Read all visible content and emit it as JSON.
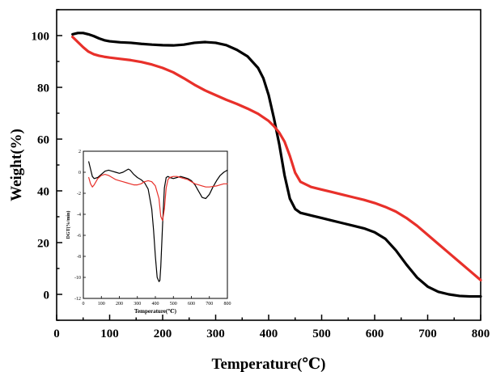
{
  "chart_data": [
    {
      "type": "line",
      "title": "",
      "xlabel": "Temperature(℃)",
      "ylabel": "Weight(%)",
      "xlim": [
        0,
        800
      ],
      "ylim": [
        -10,
        110
      ],
      "xticks": [
        0,
        100,
        200,
        300,
        400,
        500,
        600,
        700,
        800
      ],
      "xtick_labels": [
        "0",
        "100",
        "200",
        "300",
        "400",
        "500",
        "600",
        "700",
        "800"
      ],
      "yticks": [
        0,
        20,
        40,
        60,
        80,
        100
      ],
      "ytick_labels": [
        "0",
        "20",
        "40",
        "60",
        "80",
        "100"
      ],
      "grid": false,
      "series": [
        {
          "color": "#000000",
          "x": [
            30,
            40,
            50,
            60,
            70,
            80,
            90,
            100,
            120,
            140,
            160,
            180,
            200,
            220,
            240,
            260,
            280,
            300,
            320,
            340,
            360,
            380,
            390,
            400,
            410,
            420,
            430,
            440,
            450,
            460,
            480,
            500,
            520,
            540,
            560,
            580,
            600,
            620,
            640,
            660,
            680,
            700,
            720,
            740,
            760,
            780,
            800
          ],
          "y": [
            100.5,
            101,
            101,
            100.5,
            99.8,
            98.9,
            98.2,
            97.8,
            97.4,
            97.2,
            96.8,
            96.5,
            96.3,
            96.2,
            96.5,
            97.2,
            97.5,
            97.2,
            96.3,
            94.5,
            92,
            87.5,
            83.5,
            77,
            68,
            58,
            46,
            37,
            33,
            31.5,
            30.5,
            29.5,
            28.5,
            27.5,
            26.5,
            25.5,
            24,
            21.5,
            17,
            11.5,
            6.5,
            3,
            1,
            0,
            -0.6,
            -0.8,
            -0.8
          ]
        },
        {
          "color": "#e8302a",
          "x": [
            30,
            40,
            50,
            60,
            70,
            80,
            90,
            100,
            120,
            140,
            160,
            180,
            200,
            220,
            240,
            260,
            280,
            300,
            320,
            340,
            360,
            380,
            400,
            410,
            420,
            430,
            440,
            450,
            460,
            480,
            500,
            520,
            540,
            560,
            580,
            600,
            620,
            640,
            660,
            680,
            700,
            720,
            740,
            760,
            780,
            800
          ],
          "y": [
            99.5,
            97.5,
            95.5,
            93.8,
            92.8,
            92.2,
            91.8,
            91.5,
            91,
            90.5,
            89.8,
            88.8,
            87.5,
            85.8,
            83.5,
            81,
            78.8,
            77,
            75.2,
            73.6,
            71.8,
            69.8,
            67,
            65,
            62.5,
            59,
            53.5,
            47,
            43.5,
            41.5,
            40.5,
            39.5,
            38.5,
            37.5,
            36.5,
            35.3,
            33.8,
            32,
            29.5,
            26.5,
            23,
            19.5,
            16,
            12.5,
            9,
            5.5
          ]
        }
      ]
    },
    {
      "type": "line",
      "title": "",
      "xlabel": "Temperature(℃)",
      "ylabel": "DGT(%/min)",
      "xlim": [
        0,
        800
      ],
      "ylim": [
        -12,
        2
      ],
      "xticks": [
        0,
        100,
        200,
        300,
        400,
        500,
        600,
        700,
        800
      ],
      "xtick_labels": [
        "0",
        "100",
        "200",
        "300",
        "400",
        "500",
        "600",
        "700",
        "800"
      ],
      "yticks": [
        2,
        0,
        -2,
        -4,
        -6,
        -8,
        -10,
        -12
      ],
      "ytick_labels": [
        "2",
        "0",
        "-2",
        "-4",
        "-6",
        "-8",
        "-10",
        "-12"
      ],
      "grid": false,
      "series": [
        {
          "color": "#000000",
          "x": [
            30,
            40,
            50,
            60,
            80,
            100,
            120,
            140,
            160,
            180,
            200,
            220,
            240,
            250,
            260,
            270,
            280,
            300,
            320,
            340,
            360,
            380,
            390,
            400,
            410,
            420,
            425,
            430,
            440,
            450,
            460,
            470,
            480,
            500,
            520,
            540,
            560,
            580,
            600,
            620,
            640,
            660,
            680,
            700,
            720,
            740,
            760,
            780,
            800
          ],
          "y": [
            1,
            0.3,
            -0.4,
            -0.6,
            -0.5,
            -0.2,
            0.1,
            0.2,
            0.1,
            0,
            -0.1,
            0,
            0.2,
            0.3,
            0.2,
            0,
            -0.2,
            -0.5,
            -0.7,
            -1,
            -1.6,
            -3.5,
            -5.5,
            -8,
            -10,
            -10.4,
            -10.3,
            -9,
            -5,
            -1.5,
            -0.5,
            -0.4,
            -0.5,
            -0.6,
            -0.5,
            -0.4,
            -0.5,
            -0.6,
            -0.8,
            -1.2,
            -1.8,
            -2.4,
            -2.5,
            -2.1,
            -1.4,
            -0.8,
            -0.3,
            0,
            0.2
          ]
        },
        {
          "color": "#e8302a",
          "x": [
            30,
            40,
            50,
            60,
            80,
            100,
            120,
            140,
            160,
            180,
            200,
            220,
            240,
            260,
            280,
            300,
            320,
            340,
            360,
            380,
            400,
            420,
            430,
            440,
            450,
            460,
            470,
            480,
            500,
            520,
            540,
            560,
            580,
            600,
            620,
            640,
            660,
            680,
            700,
            720,
            740,
            760,
            780,
            800
          ],
          "y": [
            -0.5,
            -1.1,
            -1.4,
            -1.2,
            -0.6,
            -0.3,
            -0.2,
            -0.3,
            -0.5,
            -0.7,
            -0.8,
            -0.9,
            -1,
            -1.1,
            -1.2,
            -1.2,
            -1.1,
            -0.9,
            -0.8,
            -0.9,
            -1.3,
            -2.5,
            -4.2,
            -4.6,
            -3.5,
            -1.5,
            -0.7,
            -0.5,
            -0.4,
            -0.4,
            -0.5,
            -0.6,
            -0.7,
            -0.9,
            -1.1,
            -1.2,
            -1.3,
            -1.4,
            -1.4,
            -1.35,
            -1.3,
            -1.2,
            -1.1,
            -1.1
          ]
        }
      ]
    }
  ]
}
